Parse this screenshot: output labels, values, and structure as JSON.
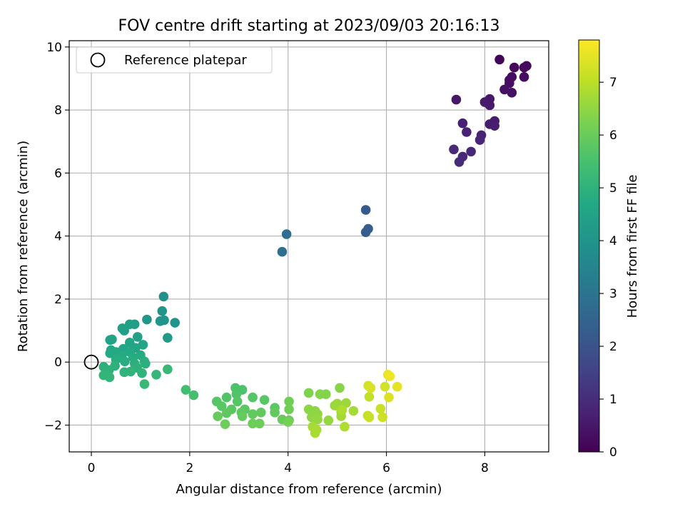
{
  "chart_data": {
    "type": "scatter",
    "title": "FOV centre drift starting at 2023/09/03 20:16:13",
    "xlabel": "Angular distance from reference (arcmin)",
    "ylabel": "Rotation from reference (arcmin)",
    "xlim": [
      -0.45,
      9.3
    ],
    "ylim": [
      -2.85,
      10.2
    ],
    "xticks": [
      0,
      2,
      4,
      6,
      8
    ],
    "yticks": [
      -2,
      0,
      2,
      4,
      6,
      8,
      10
    ],
    "xtick_labels": [
      "0",
      "2",
      "4",
      "6",
      "8"
    ],
    "ytick_labels": [
      "−2",
      "0",
      "2",
      "4",
      "6",
      "8",
      "10"
    ],
    "grid": true,
    "legend": {
      "placement": "top-left",
      "entries": [
        "Reference platepar"
      ]
    },
    "reference_point": {
      "x": 0,
      "y": 0,
      "label": "Reference platepar"
    },
    "colorbar": {
      "label": "Hours from first FF file",
      "colormap": "viridis",
      "range": [
        0,
        7.8
      ],
      "ticks": [
        0,
        1,
        2,
        3,
        4,
        5,
        6,
        7
      ],
      "tick_labels": [
        "0",
        "1",
        "2",
        "3",
        "4",
        "5",
        "6",
        "7"
      ]
    },
    "points": [
      [
        8.3,
        9.6,
        0.1
      ],
      [
        8.6,
        9.35,
        0.15
      ],
      [
        8.85,
        9.4,
        0.2
      ],
      [
        8.8,
        9.35,
        0.2
      ],
      [
        8.55,
        9.05,
        0.25
      ],
      [
        8.8,
        9.05,
        0.25
      ],
      [
        8.5,
        8.95,
        0.3
      ],
      [
        8.5,
        8.85,
        0.3
      ],
      [
        8.4,
        8.65,
        0.35
      ],
      [
        8.55,
        8.55,
        0.35
      ],
      [
        7.42,
        8.33,
        0.5
      ],
      [
        8.1,
        8.35,
        0.5
      ],
      [
        8.0,
        8.25,
        0.55
      ],
      [
        8.1,
        8.15,
        0.55
      ],
      [
        8.2,
        7.65,
        0.6
      ],
      [
        8.1,
        7.55,
        0.6
      ],
      [
        8.2,
        7.5,
        0.65
      ],
      [
        7.55,
        7.58,
        0.7
      ],
      [
        7.63,
        7.3,
        0.75
      ],
      [
        7.93,
        7.2,
        0.75
      ],
      [
        7.9,
        7.05,
        0.8
      ],
      [
        7.72,
        6.68,
        0.85
      ],
      [
        7.37,
        6.75,
        0.9
      ],
      [
        7.55,
        6.52,
        0.9
      ],
      [
        7.48,
        6.35,
        0.95
      ],
      [
        5.58,
        4.83,
        2.2
      ],
      [
        5.63,
        4.23,
        2.3
      ],
      [
        5.58,
        4.12,
        2.3
      ],
      [
        3.97,
        4.06,
        2.8
      ],
      [
        3.88,
        3.5,
        2.9
      ],
      [
        1.47,
        2.08,
        3.9
      ],
      [
        1.44,
        1.62,
        4.0
      ],
      [
        1.7,
        1.25,
        4.0
      ],
      [
        1.48,
        1.33,
        4.05
      ],
      [
        1.4,
        1.3,
        4.05
      ],
      [
        1.13,
        1.35,
        4.1
      ],
      [
        0.88,
        1.2,
        4.3
      ],
      [
        0.78,
        1.2,
        4.35
      ],
      [
        0.63,
        1.07,
        4.4
      ],
      [
        0.67,
        1.0,
        4.4
      ],
      [
        1.55,
        0.77,
        4.2
      ],
      [
        0.94,
        0.8,
        4.45
      ],
      [
        0.42,
        0.72,
        4.5
      ],
      [
        0.38,
        0.7,
        4.5
      ],
      [
        1.05,
        0.55,
        4.55
      ],
      [
        0.78,
        0.62,
        4.55
      ],
      [
        0.9,
        0.45,
        4.6
      ],
      [
        0.65,
        0.42,
        4.6
      ],
      [
        0.4,
        0.38,
        4.65
      ],
      [
        0.5,
        0.32,
        4.7
      ],
      [
        0.38,
        0.28,
        4.7
      ],
      [
        0.78,
        0.32,
        4.7
      ],
      [
        1.0,
        0.22,
        4.75
      ],
      [
        0.62,
        0.2,
        4.8
      ],
      [
        0.85,
        0.15,
        4.8
      ],
      [
        0.5,
        0.08,
        4.85
      ],
      [
        0.68,
        0.02,
        4.85
      ],
      [
        1.08,
        0.02,
        4.9
      ],
      [
        0.88,
        -0.05,
        4.9
      ],
      [
        1.1,
        -0.05,
        4.9
      ],
      [
        0.25,
        -0.15,
        4.95
      ],
      [
        0.48,
        -0.12,
        4.95
      ],
      [
        0.93,
        -0.18,
        5.0
      ],
      [
        0.36,
        -0.25,
        5.0
      ],
      [
        0.67,
        -0.32,
        5.05
      ],
      [
        0.8,
        -0.3,
        5.05
      ],
      [
        1.03,
        -0.35,
        5.05
      ],
      [
        0.25,
        -0.42,
        5.1
      ],
      [
        0.37,
        -0.48,
        5.1
      ],
      [
        1.32,
        -0.4,
        5.15
      ],
      [
        1.08,
        -0.7,
        5.2
      ],
      [
        1.55,
        -0.23,
        5.2
      ],
      [
        1.92,
        -0.88,
        5.4
      ],
      [
        2.08,
        -1.05,
        5.45
      ],
      [
        2.93,
        -0.82,
        5.6
      ],
      [
        3.07,
        -0.88,
        5.6
      ],
      [
        2.95,
        -1.02,
        5.65
      ],
      [
        2.75,
        -1.12,
        5.65
      ],
      [
        2.55,
        -1.25,
        5.7
      ],
      [
        2.97,
        -1.25,
        5.7
      ],
      [
        3.28,
        -1.12,
        5.7
      ],
      [
        3.52,
        -1.2,
        5.75
      ],
      [
        2.65,
        -1.4,
        5.75
      ],
      [
        2.85,
        -1.5,
        5.8
      ],
      [
        3.12,
        -1.5,
        5.8
      ],
      [
        3.73,
        -1.45,
        5.8
      ],
      [
        2.75,
        -1.62,
        5.85
      ],
      [
        3.05,
        -1.6,
        5.85
      ],
      [
        3.28,
        -1.65,
        5.9
      ],
      [
        3.45,
        -1.6,
        5.9
      ],
      [
        3.73,
        -1.6,
        5.9
      ],
      [
        2.57,
        -1.72,
        5.95
      ],
      [
        3.07,
        -1.72,
        5.95
      ],
      [
        3.88,
        -1.82,
        6.0
      ],
      [
        4.02,
        -1.85,
        6.0
      ],
      [
        3.28,
        -1.95,
        6.05
      ],
      [
        3.42,
        -1.95,
        6.05
      ],
      [
        2.72,
        -1.97,
        6.05
      ],
      [
        4.02,
        -1.25,
        6.1
      ],
      [
        4.02,
        -1.5,
        6.1
      ],
      [
        4.0,
        -1.9,
        6.15
      ],
      [
        4.42,
        -0.98,
        6.3
      ],
      [
        4.65,
        -1.02,
        6.35
      ],
      [
        4.77,
        -1.02,
        6.35
      ],
      [
        5.05,
        -0.82,
        6.4
      ],
      [
        4.42,
        -1.5,
        6.45
      ],
      [
        4.55,
        -1.55,
        6.45
      ],
      [
        4.6,
        -1.65,
        6.5
      ],
      [
        4.48,
        -1.75,
        6.5
      ],
      [
        4.6,
        -1.82,
        6.55
      ],
      [
        4.82,
        -1.85,
        6.55
      ],
      [
        5.0,
        -1.32,
        6.6
      ],
      [
        5.05,
        -1.42,
        6.6
      ],
      [
        5.18,
        -1.3,
        6.65
      ],
      [
        4.95,
        -1.38,
        6.65
      ],
      [
        5.08,
        -1.58,
        6.7
      ],
      [
        5.08,
        -1.72,
        6.7
      ],
      [
        5.33,
        -1.55,
        6.75
      ],
      [
        4.5,
        -2.05,
        6.75
      ],
      [
        4.58,
        -2.15,
        6.8
      ],
      [
        4.55,
        -2.25,
        6.8
      ],
      [
        5.15,
        -2.05,
        6.85
      ],
      [
        5.1,
        -1.52,
        6.85
      ],
      [
        5.65,
        -1.1,
        7.1
      ],
      [
        5.62,
        -1.7,
        7.1
      ],
      [
        5.65,
        -1.75,
        7.15
      ],
      [
        5.88,
        -1.48,
        7.15
      ],
      [
        5.92,
        -1.75,
        7.2
      ],
      [
        5.97,
        -0.78,
        7.3
      ],
      [
        5.63,
        -0.75,
        7.3
      ],
      [
        5.68,
        -0.82,
        7.35
      ],
      [
        6.05,
        -1.12,
        7.4
      ],
      [
        6.22,
        -0.78,
        7.5
      ],
      [
        6.03,
        -0.4,
        7.6
      ],
      [
        6.07,
        -0.45,
        7.6
      ]
    ]
  }
}
